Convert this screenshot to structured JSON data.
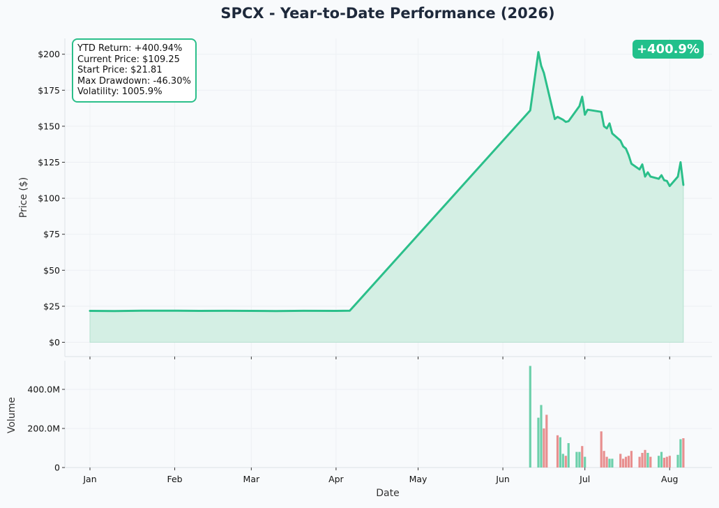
{
  "chart": {
    "title": "SPCX - Year-to-Date Performance (2026)",
    "ylabel_price": "Price ($)",
    "ylabel_volume": "Volume",
    "xlabel": "Date",
    "badge": "+400.9%",
    "stats": [
      "YTD Return: +400.94%",
      "Current Price: $109.25",
      "Start Price: $21.81",
      "Max Drawdown: -46.30%",
      "Volatility: 1005.9%"
    ]
  },
  "colors": {
    "line": "#2bbf8a",
    "fill": "#d4efe4",
    "vol_up": "#6dd0ab",
    "vol_down": "#e88f8f",
    "title": "#1e293b",
    "badge": "#22c08b"
  },
  "chart_data": [
    {
      "type": "area",
      "title": "SPCX - Year-to-Date Performance (2026)",
      "xlabel": "",
      "ylabel": "Price ($)",
      "ylim": [
        -10,
        212
      ],
      "yticks": [
        0,
        25,
        50,
        75,
        100,
        125,
        150,
        175,
        200
      ],
      "ytick_labels": [
        "$0",
        "$25",
        "$50",
        "$75",
        "$100",
        "$125",
        "$150",
        "$175",
        "$200"
      ],
      "grid": true,
      "series": [
        {
          "x": [
            "2026-01-01",
            "2026-01-10",
            "2026-01-20",
            "2026-02-01",
            "2026-02-10",
            "2026-02-20",
            "2026-03-01",
            "2026-03-10",
            "2026-03-20",
            "2026-04-01",
            "2026-04-06",
            "2026-06-11",
            "2026-06-14",
            "2026-06-15",
            "2026-06-16",
            "2026-06-20",
            "2026-06-21",
            "2026-06-23",
            "2026-06-24",
            "2026-06-25",
            "2026-06-29",
            "2026-06-30",
            "2026-07-01",
            "2026-07-02",
            "2026-07-07",
            "2026-07-08",
            "2026-07-09",
            "2026-07-10",
            "2026-07-11",
            "2026-07-14",
            "2026-07-15",
            "2026-07-16",
            "2026-07-17",
            "2026-07-18",
            "2026-07-21",
            "2026-07-22",
            "2026-07-23",
            "2026-07-24",
            "2026-07-25",
            "2026-07-28",
            "2026-07-29",
            "2026-07-30",
            "2026-07-31",
            "2026-08-01",
            "2026-08-04",
            "2026-08-05",
            "2026-08-06"
          ],
          "y": [
            21.81,
            21.7,
            21.9,
            21.95,
            21.8,
            21.85,
            21.8,
            21.7,
            21.85,
            21.8,
            21.9,
            161,
            201.5,
            192,
            187,
            155,
            156.5,
            154.5,
            153,
            153.5,
            164,
            170.5,
            158,
            161.5,
            160,
            150,
            148.5,
            152,
            145,
            140,
            136,
            134.5,
            130,
            124,
            120,
            123.5,
            115,
            118,
            115,
            113.5,
            116,
            112.5,
            112,
            108.5,
            115,
            125,
            109.25
          ]
        }
      ],
      "x_tick_labels": [
        "Jan",
        "Feb",
        "Mar",
        "Apr",
        "May",
        "Jun",
        "Jul",
        "Aug"
      ]
    },
    {
      "type": "bar",
      "title": "",
      "xlabel": "Date",
      "ylabel": "Volume",
      "ylim": [
        0,
        540
      ],
      "yticks": [
        0,
        200,
        400
      ],
      "ytick_labels": [
        "0",
        "200.0M",
        "400.0M"
      ],
      "unit": "M",
      "series": [
        {
          "x": [
            "2026-06-11",
            "2026-06-14",
            "2026-06-15",
            "2026-06-16",
            "2026-06-17",
            "2026-06-21",
            "2026-06-22",
            "2026-06-23",
            "2026-06-24",
            "2026-06-25",
            "2026-06-28",
            "2026-06-29",
            "2026-06-30",
            "2026-07-01",
            "2026-07-02",
            "2026-07-07",
            "2026-07-08",
            "2026-07-09",
            "2026-07-10",
            "2026-07-11",
            "2026-07-14",
            "2026-07-15",
            "2026-07-16",
            "2026-07-17",
            "2026-07-18",
            "2026-07-21",
            "2026-07-22",
            "2026-07-23",
            "2026-07-24",
            "2026-07-25",
            "2026-07-28",
            "2026-07-29",
            "2026-07-30",
            "2026-07-31",
            "2026-08-01",
            "2026-08-04",
            "2026-08-05",
            "2026-08-06"
          ],
          "values": [
            520,
            255,
            320,
            200,
            270,
            165,
            155,
            70,
            60,
            125,
            80,
            80,
            110,
            55,
            0,
            185,
            85,
            55,
            45,
            45,
            70,
            45,
            55,
            60,
            85,
            55,
            75,
            90,
            75,
            55,
            60,
            80,
            50,
            55,
            60,
            65,
            145,
            150
          ],
          "direction": [
            "up",
            "up",
            "up",
            "down",
            "down",
            "down",
            "up",
            "up",
            "down",
            "up",
            "up",
            "up",
            "down",
            "up",
            "up",
            "down",
            "down",
            "down",
            "up",
            "up",
            "down",
            "down",
            "down",
            "down",
            "down",
            "down",
            "down",
            "down",
            "up",
            "down",
            "up",
            "up",
            "down",
            "down",
            "down",
            "up",
            "up",
            "down"
          ]
        }
      ]
    }
  ]
}
